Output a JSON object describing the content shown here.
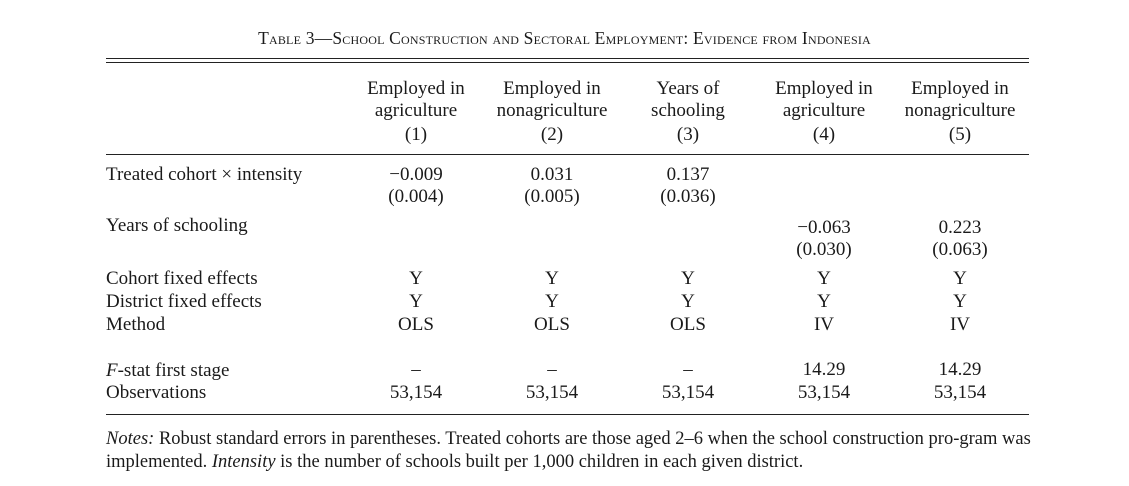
{
  "table": {
    "title": "Table 3—School Construction and Sectoral Employment: Evidence from Indonesia",
    "columns": [
      {
        "line1": "Employed in",
        "line2": "agriculture",
        "number": "(1)"
      },
      {
        "line1": "Employed in",
        "line2": "nonagriculture",
        "number": "(2)"
      },
      {
        "line1": "Years of",
        "line2": "schooling",
        "number": "(3)"
      },
      {
        "line1": "Employed in",
        "line2": "agriculture",
        "number": "(4)"
      },
      {
        "line1": "Employed in",
        "line2": "nonagriculture",
        "number": "(5)"
      }
    ],
    "rows": {
      "treated": {
        "label": "Treated cohort × intensity",
        "coef": [
          "−0.009",
          "0.031",
          "0.137",
          "",
          ""
        ],
        "se": [
          "(0.004)",
          "(0.005)",
          "(0.036)",
          "",
          ""
        ]
      },
      "schooling": {
        "label": "Years of schooling",
        "coef": [
          "",
          "",
          "",
          "−0.063",
          "0.223"
        ],
        "se": [
          "",
          "",
          "",
          "(0.030)",
          "(0.063)"
        ]
      },
      "cohort_fe": {
        "label": "Cohort fixed effects",
        "values": [
          "Y",
          "Y",
          "Y",
          "Y",
          "Y"
        ]
      },
      "district_fe": {
        "label": "District fixed effects",
        "values": [
          "Y",
          "Y",
          "Y",
          "Y",
          "Y"
        ]
      },
      "method": {
        "label": "Method",
        "values": [
          "OLS",
          "OLS",
          "OLS",
          "IV",
          "IV"
        ]
      },
      "fstat": {
        "label_italic": "F",
        "label_rest": "-stat first stage",
        "values": [
          "–",
          "–",
          "–",
          "14.29",
          "14.29"
        ]
      },
      "observations": {
        "label": "Observations",
        "values": [
          "53,154",
          "53,154",
          "53,154",
          "53,154",
          "53,154"
        ]
      }
    },
    "notes": {
      "prefix": "Notes:",
      "text1": " Robust standard errors in parentheses. Treated cohorts are those aged 2–6 when the school construction pro-gram was implemented. ",
      "italic_word": "Intensity",
      "text2": " is the number of schools built per 1,000 children in each given district."
    }
  }
}
